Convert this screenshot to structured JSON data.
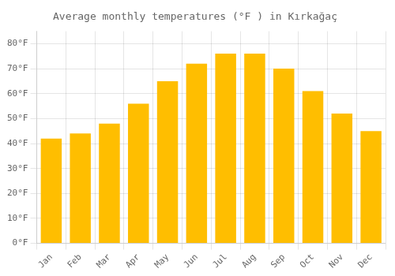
{
  "chart_data": {
    "type": "bar",
    "title": "Average monthly temperatures (°F ) in Kırkağaç",
    "categories": [
      "Jan",
      "Feb",
      "Mar",
      "Apr",
      "May",
      "Jun",
      "Jul",
      "Aug",
      "Sep",
      "Oct",
      "Nov",
      "Dec"
    ],
    "values": [
      42,
      44,
      48,
      56,
      65,
      72,
      76,
      76,
      70,
      61,
      52,
      45
    ],
    "color": "#FFBE00",
    "ylim": [
      0,
      85
    ],
    "yticks": [
      {
        "value": 0,
        "label": "0°F"
      },
      {
        "value": 10,
        "label": "10°F"
      },
      {
        "value": 20,
        "label": "20°F"
      },
      {
        "value": 30,
        "label": "30°F"
      },
      {
        "value": 40,
        "label": "40°F"
      },
      {
        "value": 50,
        "label": "50°F"
      },
      {
        "value": 60,
        "label": "60°F"
      },
      {
        "value": 70,
        "label": "70°F"
      },
      {
        "value": 80,
        "label": "80°F"
      }
    ],
    "grid": true
  }
}
